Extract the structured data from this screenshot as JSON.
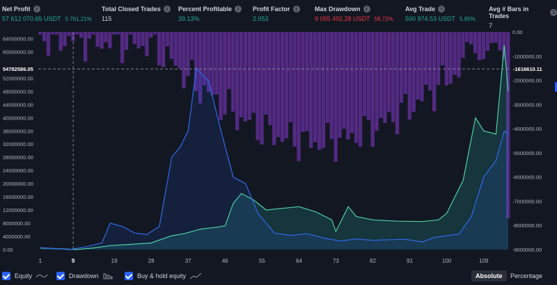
{
  "stats": [
    {
      "label": "Net Profit",
      "value": "57 612 070.65 USDT",
      "sub": "5 761.21%",
      "color": "green"
    },
    {
      "label": "Total Closed Trades",
      "value": "115",
      "sub": "",
      "color": "white"
    },
    {
      "label": "Percent Profitable",
      "value": "39.13%",
      "sub": "",
      "color": "green"
    },
    {
      "label": "Profit Factor",
      "value": "2.053",
      "sub": "",
      "color": "green"
    },
    {
      "label": "Max Drawdown",
      "value": "9 055 492.28 USDT",
      "sub": "58.72%",
      "color": "red"
    },
    {
      "label": "Avg Trade",
      "value": "500 974.53 USDT",
      "sub": "5.85%",
      "color": "green"
    },
    {
      "label": "Avg # Bars in Trades",
      "value": "7",
      "sub": "",
      "color": "white"
    }
  ],
  "legend": {
    "equity": "Equity",
    "drawdown": "Drawdown",
    "buyhold": "Buy & hold equity"
  },
  "buttons": {
    "absolute": "Absolute",
    "percentage": "Percentage"
  },
  "crosshair": {
    "left_label": "54782586.05",
    "right_label": "-1616610.11",
    "x_label": "9"
  },
  "chart_data": {
    "type": "line",
    "trades": 115,
    "x_ticks": [
      "1",
      "9",
      "19",
      "28",
      "37",
      "46",
      "55",
      "64",
      "73",
      "82",
      "91",
      "100",
      "109"
    ],
    "left_ticks": [
      "0.00",
      "4000000.00",
      "8000000.00",
      "12000000.00",
      "16000000.00",
      "20000000.00",
      "24000000.00",
      "28000000.00",
      "32000000.00",
      "36000000.00",
      "40000000.00",
      "44000000.00",
      "48000000.00",
      "52000000.00",
      "60000000.00",
      "64000000.00"
    ],
    "right_ticks": [
      "0.00",
      "-1000000.00",
      "-2000000.00",
      "-3000000.00",
      "-4000000.00",
      "-5000000.00",
      "-6000000.00",
      "-7000000.00",
      "-8000000.00",
      "-9000000.00"
    ],
    "left_range": [
      0,
      66000000
    ],
    "right_range": [
      -9000000,
      0
    ],
    "series": [
      {
        "name": "Equity",
        "color": "#26a69a",
        "points": [
          [
            1,
            500000
          ],
          [
            10,
            0
          ],
          [
            14,
            500000
          ],
          [
            18,
            1200000
          ],
          [
            22,
            1500000
          ],
          [
            28,
            2000000
          ],
          [
            33,
            4200000
          ],
          [
            36,
            4800000
          ],
          [
            40,
            6200000
          ],
          [
            44,
            6800000
          ],
          [
            46,
            7200000
          ],
          [
            48,
            14000000
          ],
          [
            50,
            17000000
          ],
          [
            53,
            15000000
          ],
          [
            56,
            12000000
          ],
          [
            60,
            12500000
          ],
          [
            64,
            13000000
          ],
          [
            68,
            11500000
          ],
          [
            72,
            9000000
          ],
          [
            73,
            5500000
          ],
          [
            76,
            13000000
          ],
          [
            78,
            10000000
          ],
          [
            82,
            9000000
          ],
          [
            88,
            8600000
          ],
          [
            94,
            8500000
          ],
          [
            98,
            9000000
          ],
          [
            100,
            11000000
          ],
          [
            104,
            21000000
          ],
          [
            107,
            40000000
          ],
          [
            109,
            36000000
          ],
          [
            112,
            35000000
          ],
          [
            114,
            62000000
          ],
          [
            115,
            48000000
          ]
        ]
      },
      {
        "name": "Buy & hold equity",
        "color": "#2962ff",
        "points": [
          [
            1,
            600000
          ],
          [
            8,
            0
          ],
          [
            12,
            800000
          ],
          [
            16,
            2000000
          ],
          [
            18,
            8000000
          ],
          [
            21,
            7000000
          ],
          [
            24,
            5000000
          ],
          [
            27,
            4600000
          ],
          [
            30,
            7000000
          ],
          [
            33,
            28000000
          ],
          [
            35,
            31000000
          ],
          [
            37,
            36000000
          ],
          [
            39,
            55000000
          ],
          [
            42,
            51000000
          ],
          [
            45,
            36000000
          ],
          [
            48,
            22000000
          ],
          [
            51,
            20000000
          ],
          [
            54,
            11000000
          ],
          [
            58,
            5000000
          ],
          [
            62,
            4300000
          ],
          [
            66,
            4800000
          ],
          [
            70,
            3500000
          ],
          [
            74,
            2600000
          ],
          [
            78,
            3200000
          ],
          [
            82,
            2800000
          ],
          [
            86,
            3000000
          ],
          [
            90,
            3100000
          ],
          [
            94,
            2300000
          ],
          [
            97,
            3700000
          ],
          [
            100,
            4200000
          ],
          [
            103,
            4700000
          ],
          [
            106,
            10000000
          ],
          [
            109,
            22000000
          ],
          [
            112,
            27000000
          ],
          [
            114,
            36000000
          ],
          [
            115,
            35000000
          ]
        ]
      }
    ]
  }
}
